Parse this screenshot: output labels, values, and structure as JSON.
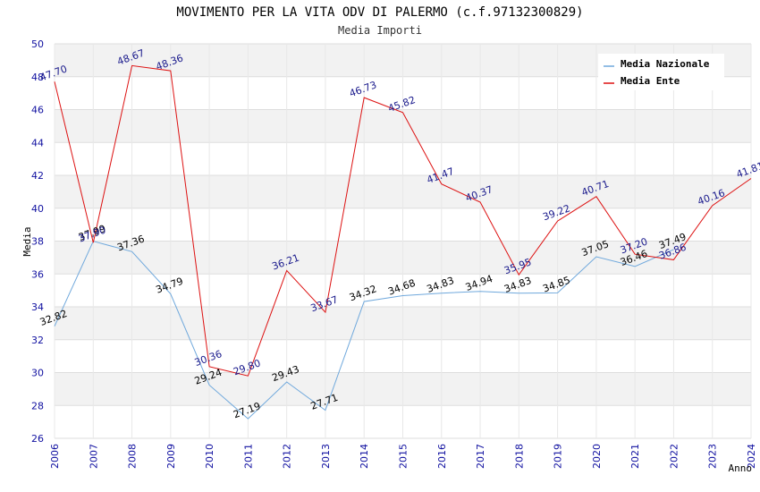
{
  "chart_data": {
    "type": "line",
    "title": "MOVIMENTO PER LA VITA ODV DI PALERMO (c.f.97132300829)",
    "subtitle": "Media Importi",
    "xlabel": "Anno",
    "ylabel": "Media",
    "ylim": [
      26,
      50
    ],
    "y_ticks": [
      "26",
      "28",
      "30",
      "32",
      "34",
      "36",
      "38",
      "40",
      "42",
      "44",
      "46",
      "48",
      "50"
    ],
    "x": [
      "2006",
      "2007",
      "2008",
      "2009",
      "2010",
      "2011",
      "2012",
      "2013",
      "2014",
      "2015",
      "2016",
      "2017",
      "2018",
      "2019",
      "2020",
      "2021",
      "2022",
      "2023",
      "2024"
    ],
    "grid": "horizontal bands",
    "legend_position": "top-right",
    "series": [
      {
        "name": "Media Nazionale",
        "color": "#6fa8dc",
        "label_color": "#000000",
        "values": [
          32.82,
          37.99,
          37.36,
          34.79,
          29.24,
          27.19,
          29.43,
          27.71,
          34.32,
          34.68,
          34.83,
          34.94,
          34.83,
          34.85,
          37.05,
          36.46,
          37.49,
          null,
          null
        ],
        "labels": [
          "32.82",
          "37.99",
          "37.36",
          "34.79",
          "29.24",
          "27.19",
          "29.43",
          "27.71",
          "34.32",
          "34.68",
          "34.83",
          "34.94",
          "34.83",
          "34.85",
          "37.05",
          "36.46",
          "37.49",
          "",
          ""
        ]
      },
      {
        "name": "Media Ente",
        "color": "#dd1111",
        "label_color": "#1a1a8c",
        "values": [
          47.7,
          37.9,
          48.67,
          48.36,
          30.36,
          29.8,
          36.21,
          33.67,
          46.73,
          45.82,
          41.47,
          40.37,
          35.95,
          39.22,
          40.71,
          37.2,
          36.86,
          40.16,
          41.81
        ],
        "labels": [
          "47.70",
          "37.90",
          "48.67",
          "48.36",
          "30.36",
          "29.80",
          "36.21",
          "33.67",
          "46.73",
          "45.82",
          "41.47",
          "40.37",
          "35.95",
          "39.22",
          "40.71",
          "37.20",
          "36.86",
          "40.16",
          "41.81"
        ]
      }
    ]
  }
}
